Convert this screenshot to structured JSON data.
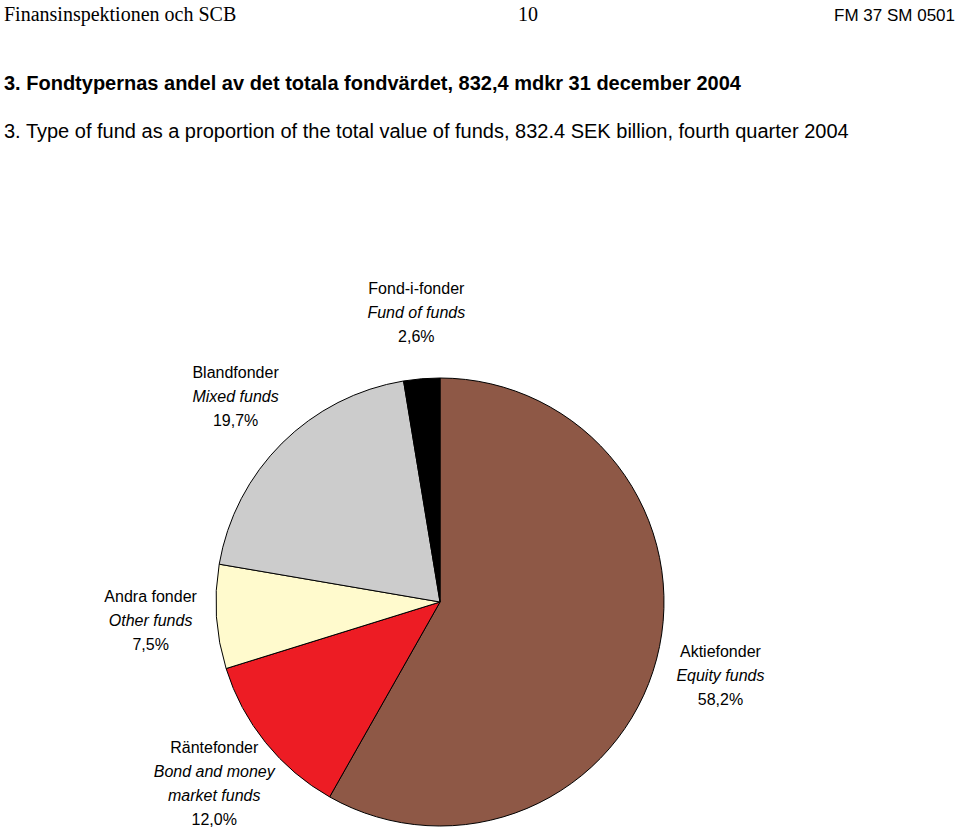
{
  "chart_data": {
    "type": "pie",
    "header": {
      "left": "Finansinspektionen och SCB",
      "center": "10",
      "right": "FM 37 SM 0501"
    },
    "title": "3. Fondtypernas andel av det totala fondvärdet, 832,4 mdkr 31 december 2004",
    "subtitle": "3. Type of fund as a proportion of the total value of funds, 832.4 SEK billion, fourth quarter 2004",
    "categories": [
      "Aktiefonder",
      "Räntefonder",
      "Andra fonder",
      "Blandfonder",
      "Fond-i-fonder"
    ],
    "english": [
      "Equity funds",
      "Bond and money market funds",
      "Other funds",
      "Mixed funds",
      "Fund of funds"
    ],
    "values": [
      58.2,
      12.0,
      7.5,
      19.7,
      2.6
    ],
    "value_labels": [
      "58,2%",
      "12,0%",
      "7,5%",
      "19,7%",
      "2,6%"
    ],
    "colors": [
      "#8e5846",
      "#ed1c24",
      "#fffacd",
      "#cccccc",
      "#000000"
    ],
    "data_labels": true
  }
}
